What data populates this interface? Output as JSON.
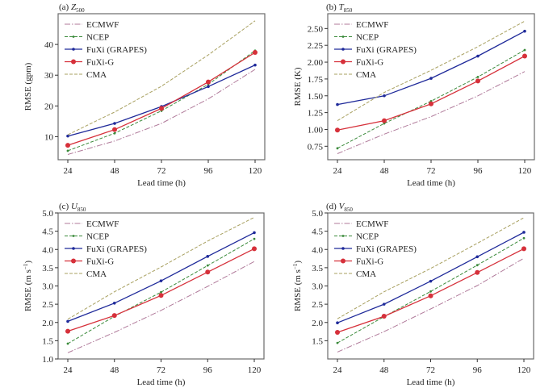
{
  "figure": {
    "x_label": "Lead time (h)"
  },
  "legend": [
    {
      "name": "ECMWF",
      "color": "#b07a9a",
      "style": "dashdot",
      "marker": "none"
    },
    {
      "name": "NCEP",
      "color": "#3a8a3a",
      "style": "dashed",
      "marker": "small"
    },
    {
      "name": "FuXi (GRAPES)",
      "color": "#1f2a9a",
      "style": "solid",
      "marker": "small"
    },
    {
      "name": "FuXi-G",
      "color": "#d6303a",
      "style": "solid",
      "marker": "large"
    },
    {
      "name": "CMA",
      "color": "#a8a060",
      "style": "dashed",
      "marker": "none"
    }
  ],
  "chart_data": [
    {
      "type": "line",
      "panel": "(a)",
      "title_prefix": "(a) ",
      "title_var": "Z",
      "title_sub": "500",
      "xlabel": "Lead time (h)",
      "ylabel": "RMSE (gpm)",
      "ylabel_sup": "",
      "ylabel_tail": "",
      "x": [
        24,
        48,
        72,
        96,
        120
      ],
      "xlim": [
        20,
        124
      ],
      "ylim": [
        2.5,
        50
      ],
      "yticks": [
        10,
        20,
        30,
        40
      ],
      "ytick_labels": [
        "10",
        "20",
        "30",
        "40"
      ],
      "xtick_labels": [
        "24",
        "48",
        "72",
        "96",
        "120"
      ],
      "legend_loc": "upper-left",
      "grid": false,
      "series": [
        {
          "name": "ECMWF",
          "values": [
            4.2,
            8.6,
            14.3,
            22.3,
            31.9
          ]
        },
        {
          "name": "NCEP",
          "values": [
            5.4,
            11.1,
            18.4,
            27.0,
            38.0
          ]
        },
        {
          "name": "FuXi (GRAPES)",
          "values": [
            10.2,
            14.3,
            19.8,
            26.3,
            33.3
          ]
        },
        {
          "name": "FuXi-G",
          "values": [
            7.2,
            12.3,
            19.2,
            27.8,
            37.4
          ]
        },
        {
          "name": "CMA",
          "values": [
            10.6,
            18.0,
            26.4,
            36.6,
            47.7
          ]
        }
      ]
    },
    {
      "type": "line",
      "panel": "(b)",
      "title_prefix": "(b) ",
      "title_var": "T",
      "title_sub": "850",
      "xlabel": "Lead time (h)",
      "ylabel": "RMSE (K)",
      "ylabel_sup": "",
      "ylabel_tail": "",
      "x": [
        24,
        48,
        72,
        96,
        120
      ],
      "xlim": [
        20,
        124
      ],
      "ylim": [
        0.55,
        2.72
      ],
      "yticks": [
        0.75,
        1.0,
        1.25,
        1.5,
        1.75,
        2.0,
        2.25,
        2.5
      ],
      "ytick_labels": [
        "0.75",
        "1.00",
        "1.25",
        "1.50",
        "1.75",
        "2.00",
        "2.25",
        "2.50"
      ],
      "xtick_labels": [
        "24",
        "48",
        "72",
        "96",
        "120"
      ],
      "legend_loc": "upper-left",
      "grid": false,
      "series": [
        {
          "name": "ECMWF",
          "values": [
            0.64,
            0.93,
            1.19,
            1.5,
            1.86
          ]
        },
        {
          "name": "NCEP",
          "values": [
            0.72,
            1.09,
            1.42,
            1.78,
            2.18
          ]
        },
        {
          "name": "FuXi (GRAPES)",
          "values": [
            1.37,
            1.5,
            1.76,
            2.09,
            2.46
          ]
        },
        {
          "name": "FuXi-G",
          "values": [
            0.99,
            1.13,
            1.38,
            1.72,
            2.09
          ]
        },
        {
          "name": "CMA",
          "values": [
            1.13,
            1.55,
            1.88,
            2.23,
            2.61
          ]
        }
      ]
    },
    {
      "type": "line",
      "panel": "(c)",
      "title_prefix": "(c) ",
      "title_var": "U",
      "title_sub": "850",
      "xlabel": "Lead time (h)",
      "ylabel": "RMSE (m s",
      "ylabel_sup": "−1",
      "ylabel_tail": ")",
      "x": [
        24,
        48,
        72,
        96,
        120
      ],
      "xlim": [
        20,
        124
      ],
      "ylim": [
        1.0,
        5.0
      ],
      "yticks": [
        1.0,
        1.5,
        2.0,
        2.5,
        3.0,
        3.5,
        4.0,
        4.5,
        5.0
      ],
      "ytick_labels": [
        "1.0",
        "1.5",
        "2.0",
        "2.5",
        "3.0",
        "3.5",
        "4.0",
        "4.5",
        "5.0"
      ],
      "xtick_labels": [
        "24",
        "48",
        "72",
        "96",
        "120"
      ],
      "legend_loc": "upper-left",
      "grid": false,
      "series": [
        {
          "name": "ECMWF",
          "values": [
            1.17,
            1.73,
            2.33,
            2.99,
            3.67
          ]
        },
        {
          "name": "NCEP",
          "values": [
            1.42,
            2.17,
            2.83,
            3.56,
            4.29
          ]
        },
        {
          "name": "FuXi (GRAPES)",
          "values": [
            2.03,
            2.53,
            3.14,
            3.81,
            4.46
          ]
        },
        {
          "name": "FuXi-G",
          "values": [
            1.76,
            2.19,
            2.74,
            3.38,
            4.02
          ]
        },
        {
          "name": "CMA",
          "values": [
            2.09,
            2.84,
            3.52,
            4.23,
            4.88
          ]
        }
      ]
    },
    {
      "type": "line",
      "panel": "(d)",
      "title_prefix": "(d) ",
      "title_var": "V",
      "title_sub": "850",
      "xlabel": "Lead time (h)",
      "ylabel": "RMSE (m s",
      "ylabel_sup": "−1",
      "ylabel_tail": ")",
      "x": [
        24,
        48,
        72,
        96,
        120
      ],
      "xlim": [
        20,
        124
      ],
      "ylim": [
        1.0,
        5.0
      ],
      "yticks": [
        1.5,
        2.0,
        2.5,
        3.0,
        3.5,
        4.0,
        4.5,
        5.0
      ],
      "ytick_labels": [
        "1.5",
        "2.0",
        "2.5",
        "3.0",
        "3.5",
        "4.0",
        "4.5",
        "5.0"
      ],
      "xtick_labels": [
        "24",
        "48",
        "72",
        "96",
        "120"
      ],
      "legend_loc": "upper-left",
      "grid": false,
      "series": [
        {
          "name": "ECMWF",
          "values": [
            1.19,
            1.75,
            2.37,
            3.01,
            3.76
          ]
        },
        {
          "name": "NCEP",
          "values": [
            1.44,
            2.16,
            2.85,
            3.57,
            4.31
          ]
        },
        {
          "name": "FuXi (GRAPES)",
          "values": [
            1.99,
            2.5,
            3.13,
            3.8,
            4.47
          ]
        },
        {
          "name": "FuXi-G",
          "values": [
            1.73,
            2.17,
            2.73,
            3.37,
            4.02
          ]
        },
        {
          "name": "CMA",
          "values": [
            2.1,
            2.84,
            3.48,
            4.17,
            4.87
          ]
        }
      ]
    }
  ]
}
